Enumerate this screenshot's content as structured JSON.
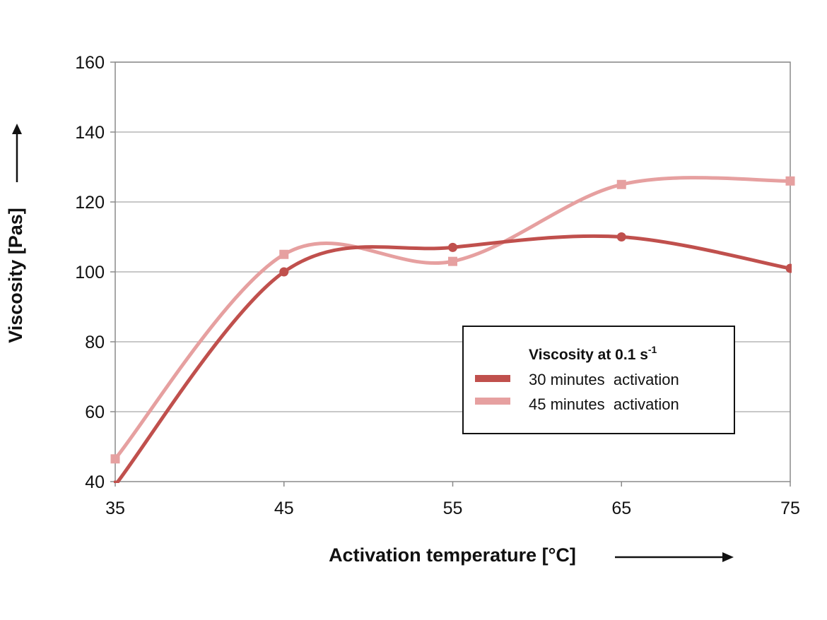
{
  "chart_data": {
    "type": "line",
    "xlabel": "Activation temperature [°C]",
    "ylabel": "Viscosity [Pas]",
    "x": [
      35,
      45,
      55,
      65,
      75
    ],
    "xlim": [
      35,
      75
    ],
    "ylim": [
      40,
      160
    ],
    "yticks": [
      40,
      60,
      80,
      100,
      120,
      140,
      160
    ],
    "grid": true,
    "smooth": true,
    "legend": {
      "title_main": "Viscosity at 0.1 s",
      "title_sup": "-1",
      "placement": "center-right"
    },
    "series": [
      {
        "name": "30 minutes  activation",
        "marker": "circle",
        "color": "#c0504d",
        "values": [
          39,
          100,
          107,
          110,
          101
        ]
      },
      {
        "name": "45 minutes  activation",
        "marker": "square",
        "color": "#e6a0a0",
        "values": [
          46.5,
          105,
          103,
          125,
          126
        ]
      }
    ]
  }
}
